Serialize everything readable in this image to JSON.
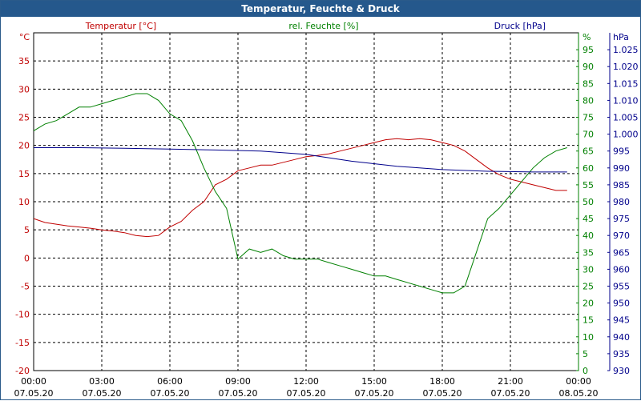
{
  "chart_data": {
    "type": "line",
    "title": "Temperatur, Feuchte & Druck",
    "x_ticks": [
      {
        "time": "00:00",
        "date": "07.05.20"
      },
      {
        "time": "03:00",
        "date": "07.05.20"
      },
      {
        "time": "06:00",
        "date": "07.05.20"
      },
      {
        "time": "09:00",
        "date": "07.05.20"
      },
      {
        "time": "12:00",
        "date": "07.05.20"
      },
      {
        "time": "15:00",
        "date": "07.05.20"
      },
      {
        "time": "18:00",
        "date": "07.05.20"
      },
      {
        "time": "21:00",
        "date": "07.05.20"
      },
      {
        "time": "00:00",
        "date": "08.05.20"
      }
    ],
    "x_range_hours": [
      0,
      24
    ],
    "axes": {
      "temperature": {
        "label": "Temperatur [°C]",
        "unit": "°C",
        "range": [
          -20,
          40
        ],
        "ticks": [
          "-20",
          "-15",
          "-10",
          "-5",
          "0",
          "5",
          "10",
          "15",
          "20",
          "25",
          "30",
          "35"
        ],
        "color": "#c00000"
      },
      "humidity": {
        "label": "rel. Feuchte [%]",
        "unit": "%",
        "range": [
          0,
          100
        ],
        "ticks": [
          "0",
          "5",
          "10",
          "15",
          "20",
          "25",
          "30",
          "35",
          "40",
          "45",
          "50",
          "55",
          "60",
          "65",
          "70",
          "75",
          "80",
          "85",
          "90",
          "95"
        ],
        "color": "#008000"
      },
      "pressure": {
        "label": "Druck [hPa]",
        "unit": "hPa",
        "range": [
          930,
          1030
        ],
        "ticks": [
          "930",
          "935",
          "940",
          "945",
          "950",
          "955",
          "960",
          "965",
          "970",
          "975",
          "980",
          "985",
          "990",
          "995",
          "1.000",
          "1.005",
          "1.010",
          "1.015",
          "1.020",
          "1.025"
        ],
        "color": "#00008b"
      }
    },
    "series": [
      {
        "name": "Temperatur [°C]",
        "axis": "temperature",
        "color": "#c00000",
        "x": [
          0,
          0.5,
          1,
          1.5,
          2,
          2.5,
          3,
          3.5,
          4,
          4.5,
          5,
          5.5,
          6,
          6.5,
          7,
          7.5,
          8,
          8.5,
          9,
          9.5,
          10,
          10.5,
          11,
          11.5,
          12,
          12.5,
          13,
          13.5,
          14,
          14.5,
          15,
          15.5,
          16,
          16.5,
          17,
          17.5,
          18,
          18.5,
          19,
          19.5,
          20,
          20.5,
          21,
          21.5,
          22,
          22.5,
          23,
          23.5
        ],
        "values": [
          7,
          6.3,
          6,
          5.7,
          5.5,
          5.3,
          5,
          4.8,
          4.5,
          4,
          3.8,
          4,
          5.5,
          6.5,
          8.5,
          10,
          13,
          14,
          15.5,
          16,
          16.5,
          16.5,
          17,
          17.5,
          18,
          18.2,
          18.5,
          19,
          19.5,
          20,
          20.5,
          21,
          21.2,
          21,
          21.2,
          21,
          20.5,
          20,
          19,
          17.5,
          16,
          14.8,
          14,
          13.5,
          13,
          12.5,
          12,
          12
        ]
      },
      {
        "name": "rel. Feuchte [%]",
        "axis": "humidity",
        "color": "#008000",
        "x": [
          0,
          0.5,
          1,
          1.5,
          2,
          2.5,
          3,
          3.5,
          4,
          4.5,
          5,
          5.5,
          6,
          6.5,
          7,
          7.5,
          8,
          8.5,
          9,
          9.5,
          10,
          10.5,
          11,
          11.5,
          12,
          12.5,
          13,
          13.5,
          14,
          14.5,
          15,
          15.5,
          16,
          16.5,
          17,
          17.5,
          18,
          18.5,
          19,
          19.5,
          20,
          20.5,
          21,
          21.5,
          22,
          22.5,
          23,
          23.5
        ],
        "values": [
          71,
          73,
          74,
          76,
          78,
          78,
          79,
          80,
          81,
          82,
          82,
          80,
          76,
          74,
          68,
          60,
          53,
          48,
          33,
          36,
          35,
          36,
          34,
          33,
          33,
          33,
          32,
          31,
          30,
          29,
          28,
          28,
          27,
          26,
          25,
          24,
          23,
          23,
          25,
          35,
          45,
          48,
          52,
          56,
          60,
          63,
          65,
          66
        ]
      },
      {
        "name": "Druck [hPa]",
        "axis": "pressure",
        "color": "#00008b",
        "x": [
          0,
          2,
          4,
          6,
          8,
          10,
          12,
          14,
          16,
          18,
          20,
          22,
          23.5
        ],
        "values": [
          996,
          996,
          995.8,
          995.6,
          995.3,
          995,
          994,
          992,
          990.5,
          989.5,
          989,
          988.8,
          988.8
        ]
      }
    ]
  }
}
